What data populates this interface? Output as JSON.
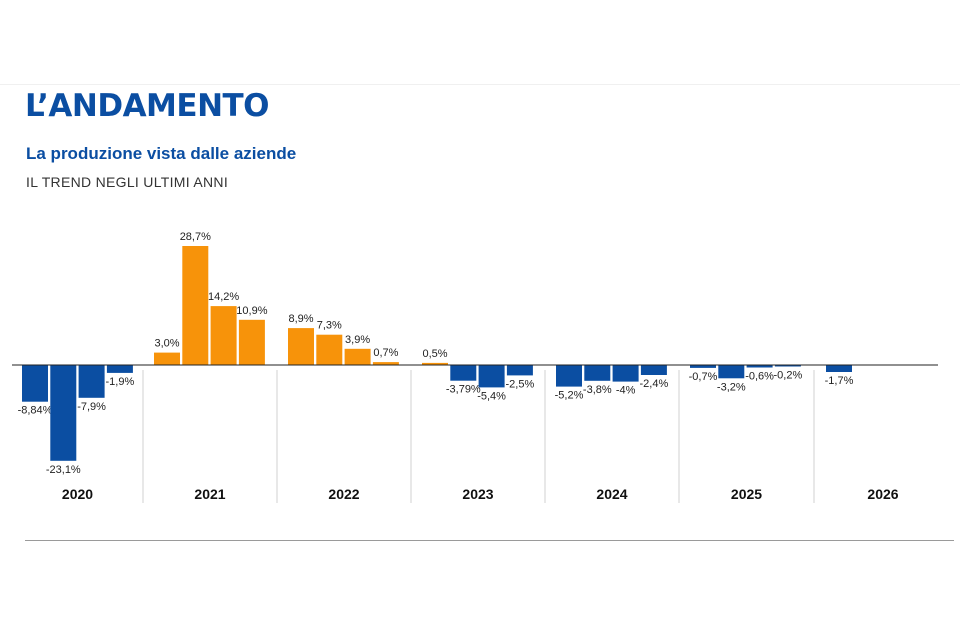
{
  "header": {
    "title": "L’ANDAMENTO",
    "subtitle": "La produzione vista dalle aziende",
    "kicker": "IL TREND NEGLI ULTIMI ANNI"
  },
  "colors": {
    "positive": "#f7930a",
    "negative": "#0b4ea2",
    "title": "#0b4ea2"
  },
  "chart_data": {
    "type": "bar",
    "title": "L’ANDAMENTO",
    "subtitle": "La produzione vista dalle aziende",
    "xlabel": "",
    "ylabel": "",
    "ylim": [
      -23.1,
      28.7
    ],
    "grid": false,
    "groups": [
      {
        "year": "2020",
        "bars": [
          {
            "value": -8.84,
            "label": "-8,84%"
          },
          {
            "value": -23.1,
            "label": "-23,1%"
          },
          {
            "value": -7.9,
            "label": "-7,9%"
          },
          {
            "value": -1.9,
            "label": "-1,9%"
          }
        ]
      },
      {
        "year": "2021",
        "bars": [
          {
            "value": 3.0,
            "label": "3,0%"
          },
          {
            "value": 28.7,
            "label": "28,7%"
          },
          {
            "value": 14.2,
            "label": "14,2%"
          },
          {
            "value": 10.9,
            "label": "10,9%"
          }
        ]
      },
      {
        "year": "2022",
        "bars": [
          {
            "value": 8.9,
            "label": "8,9%"
          },
          {
            "value": 7.3,
            "label": "7,3%"
          },
          {
            "value": 3.9,
            "label": "3,9%"
          },
          {
            "value": 0.7,
            "label": "0,7%"
          }
        ]
      },
      {
        "year": "2023",
        "bars": [
          {
            "value": 0.5,
            "label": "0,5%"
          },
          {
            "value": -3.79,
            "label": "-3,79%"
          },
          {
            "value": -5.4,
            "label": "-5,4%"
          },
          {
            "value": -2.5,
            "label": "-2,5%"
          }
        ]
      },
      {
        "year": "2024",
        "bars": [
          {
            "value": -5.2,
            "label": "-5,2%"
          },
          {
            "value": -3.8,
            "label": "-3,8%"
          },
          {
            "value": -4.0,
            "label": "-4%"
          },
          {
            "value": -2.4,
            "label": "-2,4%"
          }
        ]
      },
      {
        "year": "2025",
        "bars": [
          {
            "value": -0.7,
            "label": "-0,7%"
          },
          {
            "value": -3.2,
            "label": "-3,2%"
          },
          {
            "value": -0.6,
            "label": "-0,6%"
          },
          {
            "value": -0.2,
            "label": "-0,2%"
          }
        ]
      },
      {
        "year": "2026",
        "bars": [
          {
            "value": -1.7,
            "label": "-1,7%"
          }
        ]
      }
    ]
  }
}
